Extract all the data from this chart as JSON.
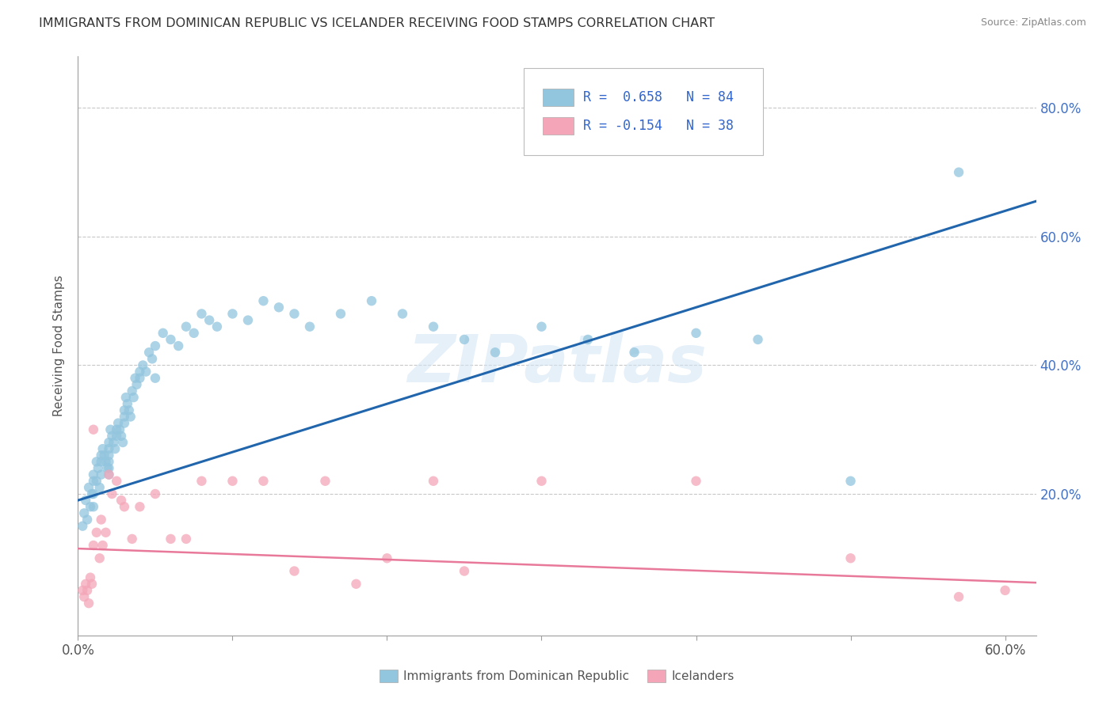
{
  "title": "IMMIGRANTS FROM DOMINICAN REPUBLIC VS ICELANDER RECEIVING FOOD STAMPS CORRELATION CHART",
  "source": "Source: ZipAtlas.com",
  "ylabel": "Receiving Food Stamps",
  "ytick_labels": [
    "20.0%",
    "40.0%",
    "60.0%",
    "80.0%"
  ],
  "ytick_values": [
    0.2,
    0.4,
    0.6,
    0.8
  ],
  "xlim": [
    0.0,
    0.62
  ],
  "ylim": [
    -0.02,
    0.88
  ],
  "legend_blue_r": "R =  0.658",
  "legend_blue_n": "N = 84",
  "legend_pink_r": "R = -0.154",
  "legend_pink_n": "N = 38",
  "legend_label_blue": "Immigrants from Dominican Republic",
  "legend_label_pink": "Icelanders",
  "blue_color": "#92c5de",
  "pink_color": "#f4a6b8",
  "line_blue": "#2166ac",
  "line_pink": "#e8799a",
  "watermark": "ZIPatlas",
  "blue_scatter_x": [
    0.003,
    0.004,
    0.005,
    0.006,
    0.007,
    0.008,
    0.009,
    0.01,
    0.01,
    0.01,
    0.01,
    0.012,
    0.012,
    0.013,
    0.014,
    0.015,
    0.015,
    0.015,
    0.016,
    0.017,
    0.018,
    0.019,
    0.02,
    0.02,
    0.02,
    0.02,
    0.02,
    0.02,
    0.021,
    0.022,
    0.023,
    0.024,
    0.025,
    0.025,
    0.026,
    0.027,
    0.028,
    0.029,
    0.03,
    0.03,
    0.03,
    0.031,
    0.032,
    0.033,
    0.034,
    0.035,
    0.036,
    0.037,
    0.038,
    0.04,
    0.04,
    0.042,
    0.044,
    0.046,
    0.048,
    0.05,
    0.05,
    0.055,
    0.06,
    0.065,
    0.07,
    0.075,
    0.08,
    0.085,
    0.09,
    0.1,
    0.11,
    0.12,
    0.13,
    0.14,
    0.15,
    0.17,
    0.19,
    0.21,
    0.23,
    0.25,
    0.27,
    0.3,
    0.33,
    0.36,
    0.4,
    0.44,
    0.5,
    0.57
  ],
  "blue_scatter_y": [
    0.15,
    0.17,
    0.19,
    0.16,
    0.21,
    0.18,
    0.2,
    0.23,
    0.22,
    0.2,
    0.18,
    0.25,
    0.22,
    0.24,
    0.21,
    0.26,
    0.25,
    0.23,
    0.27,
    0.26,
    0.25,
    0.24,
    0.28,
    0.27,
    0.26,
    0.25,
    0.24,
    0.23,
    0.3,
    0.29,
    0.28,
    0.27,
    0.3,
    0.29,
    0.31,
    0.3,
    0.29,
    0.28,
    0.33,
    0.32,
    0.31,
    0.35,
    0.34,
    0.33,
    0.32,
    0.36,
    0.35,
    0.38,
    0.37,
    0.39,
    0.38,
    0.4,
    0.39,
    0.42,
    0.41,
    0.43,
    0.38,
    0.45,
    0.44,
    0.43,
    0.46,
    0.45,
    0.48,
    0.47,
    0.46,
    0.48,
    0.47,
    0.5,
    0.49,
    0.48,
    0.46,
    0.48,
    0.5,
    0.48,
    0.46,
    0.44,
    0.42,
    0.46,
    0.44,
    0.42,
    0.45,
    0.44,
    0.22,
    0.7
  ],
  "pink_scatter_x": [
    0.003,
    0.004,
    0.005,
    0.006,
    0.007,
    0.008,
    0.009,
    0.01,
    0.01,
    0.012,
    0.014,
    0.015,
    0.016,
    0.018,
    0.02,
    0.022,
    0.025,
    0.028,
    0.03,
    0.035,
    0.04,
    0.05,
    0.06,
    0.07,
    0.08,
    0.1,
    0.12,
    0.14,
    0.16,
    0.18,
    0.2,
    0.23,
    0.25,
    0.3,
    0.4,
    0.5,
    0.57,
    0.6
  ],
  "pink_scatter_y": [
    0.05,
    0.04,
    0.06,
    0.05,
    0.03,
    0.07,
    0.06,
    0.3,
    0.12,
    0.14,
    0.1,
    0.16,
    0.12,
    0.14,
    0.23,
    0.2,
    0.22,
    0.19,
    0.18,
    0.13,
    0.18,
    0.2,
    0.13,
    0.13,
    0.22,
    0.22,
    0.22,
    0.08,
    0.22,
    0.06,
    0.1,
    0.22,
    0.08,
    0.22,
    0.22,
    0.1,
    0.04,
    0.05
  ],
  "blue_line_x": [
    0.0,
    0.62
  ],
  "blue_line_y": [
    0.19,
    0.655
  ],
  "pink_line_x": [
    0.0,
    0.62
  ],
  "pink_line_y": [
    0.115,
    0.062
  ],
  "grid_color": "#c8c8c8",
  "background_color": "#ffffff",
  "tick_color": "#9e9e9e"
}
